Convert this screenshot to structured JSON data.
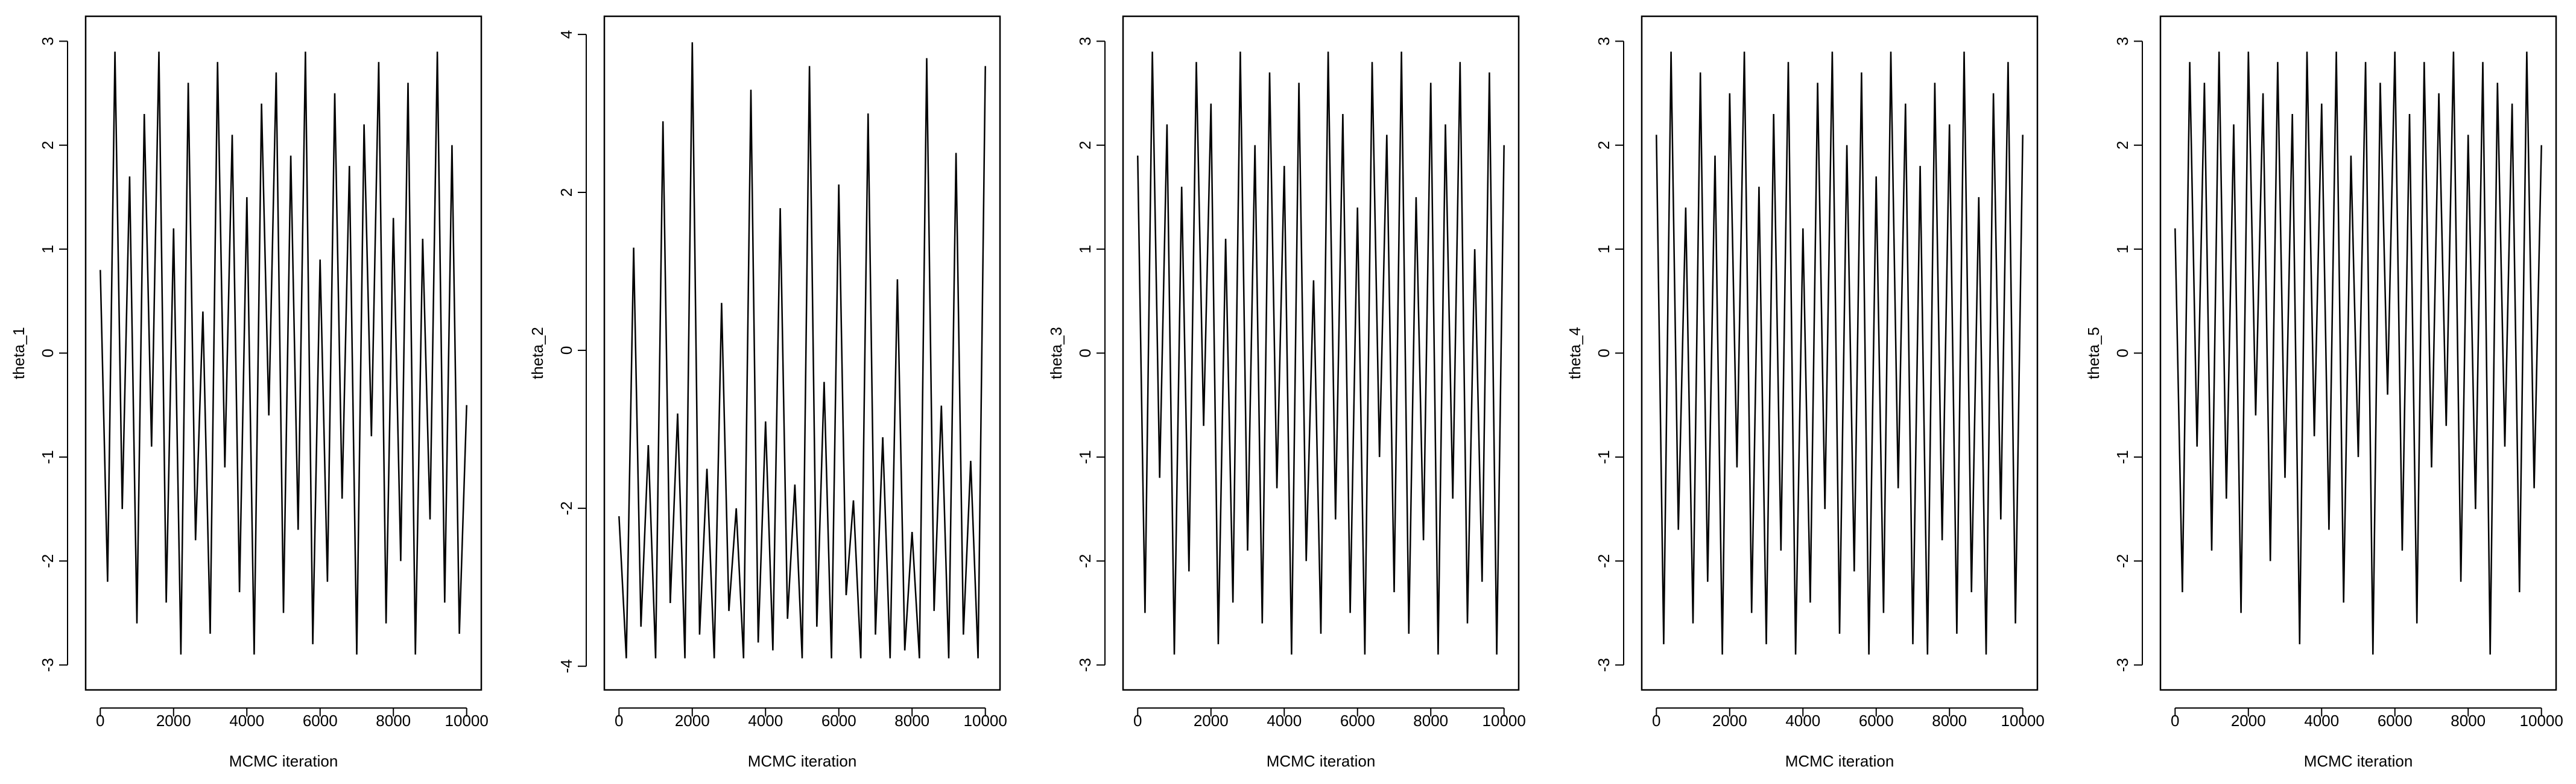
{
  "chart_data": [
    {
      "type": "line",
      "xlabel": "MCMC iteration",
      "ylabel": "theta_1",
      "color": "#000000",
      "x": [
        0,
        200,
        400,
        600,
        800,
        1000,
        1200,
        1400,
        1600,
        1800,
        2000,
        2200,
        2400,
        2600,
        2800,
        3000,
        3200,
        3400,
        3600,
        3800,
        4000,
        4200,
        4400,
        4600,
        4800,
        5000,
        5200,
        5400,
        5600,
        5800,
        6000,
        6200,
        6400,
        6600,
        6800,
        7000,
        7200,
        7400,
        7600,
        7800,
        8000,
        8200,
        8400,
        8600,
        8800,
        9000,
        9200,
        9400,
        9600,
        9800,
        10000
      ],
      "values": [
        0.8,
        -2.2,
        2.9,
        -1.5,
        1.7,
        -2.6,
        2.3,
        -0.9,
        2.9,
        -2.4,
        1.2,
        -2.9,
        2.6,
        -1.8,
        0.4,
        -2.7,
        2.8,
        -1.1,
        2.1,
        -2.3,
        1.5,
        -2.9,
        2.4,
        -0.6,
        2.7,
        -2.5,
        1.9,
        -1.7,
        2.9,
        -2.8,
        0.9,
        -2.2,
        2.5,
        -1.4,
        1.8,
        -2.9,
        2.2,
        -0.8,
        2.8,
        -2.6,
        1.3,
        -2.0,
        2.6,
        -2.9,
        1.1,
        -1.6,
        2.9,
        -2.4,
        2.0,
        -2.7,
        -0.5
      ],
      "xlim": [
        -400,
        10400
      ],
      "xticks": [
        0,
        2000,
        4000,
        6000,
        8000,
        10000
      ],
      "ylim": [
        -3.24,
        3.24
      ],
      "yticks": [
        -3,
        -2,
        -1,
        0,
        1,
        2,
        3
      ]
    },
    {
      "type": "line",
      "xlabel": "MCMC iteration",
      "ylabel": "theta_2",
      "color": "#000000",
      "x": [
        0,
        200,
        400,
        600,
        800,
        1000,
        1200,
        1400,
        1600,
        1800,
        2000,
        2200,
        2400,
        2600,
        2800,
        3000,
        3200,
        3400,
        3600,
        3800,
        4000,
        4200,
        4400,
        4600,
        4800,
        5000,
        5200,
        5400,
        5600,
        5800,
        6000,
        6200,
        6400,
        6600,
        6800,
        7000,
        7200,
        7400,
        7600,
        7800,
        8000,
        8200,
        8400,
        8600,
        8800,
        9000,
        9200,
        9400,
        9600,
        9800,
        10000
      ],
      "values": [
        -2.1,
        -3.9,
        1.3,
        -3.5,
        -1.2,
        -3.9,
        2.9,
        -3.2,
        -0.8,
        -3.9,
        3.9,
        -3.6,
        -1.5,
        -3.9,
        0.6,
        -3.3,
        -2.0,
        -3.9,
        3.3,
        -3.7,
        -0.9,
        -3.8,
        1.8,
        -3.4,
        -1.7,
        -3.9,
        3.6,
        -3.5,
        -0.4,
        -3.9,
        2.1,
        -3.1,
        -1.9,
        -3.9,
        3.0,
        -3.6,
        -1.1,
        -3.9,
        0.9,
        -3.8,
        -2.3,
        -3.9,
        3.7,
        -3.3,
        -0.7,
        -3.9,
        2.5,
        -3.6,
        -1.4,
        -3.9,
        3.6
      ],
      "xlim": [
        -400,
        10400
      ],
      "xticks": [
        0,
        2000,
        4000,
        6000,
        8000,
        10000
      ],
      "ylim": [
        -4.3,
        4.23
      ],
      "yticks": [
        -4,
        -2,
        0,
        2,
        4
      ]
    },
    {
      "type": "line",
      "xlabel": "MCMC iteration",
      "ylabel": "theta_3",
      "color": "#000000",
      "x": [
        0,
        200,
        400,
        600,
        800,
        1000,
        1200,
        1400,
        1600,
        1800,
        2000,
        2200,
        2400,
        2600,
        2800,
        3000,
        3200,
        3400,
        3600,
        3800,
        4000,
        4200,
        4400,
        4600,
        4800,
        5000,
        5200,
        5400,
        5600,
        5800,
        6000,
        6200,
        6400,
        6600,
        6800,
        7000,
        7200,
        7400,
        7600,
        7800,
        8000,
        8200,
        8400,
        8600,
        8800,
        9000,
        9200,
        9400,
        9600,
        9800,
        10000
      ],
      "values": [
        1.9,
        -2.5,
        2.9,
        -1.2,
        2.2,
        -2.9,
        1.6,
        -2.1,
        2.8,
        -0.7,
        2.4,
        -2.8,
        1.1,
        -2.4,
        2.9,
        -1.9,
        2.0,
        -2.6,
        2.7,
        -1.3,
        1.8,
        -2.9,
        2.6,
        -2.0,
        0.7,
        -2.7,
        2.9,
        -1.6,
        2.3,
        -2.5,
        1.4,
        -2.9,
        2.8,
        -1.0,
        2.1,
        -2.3,
        2.9,
        -2.7,
        1.5,
        -1.8,
        2.6,
        -2.9,
        2.2,
        -1.4,
        2.8,
        -2.6,
        1.0,
        -2.2,
        2.7,
        -2.9,
        2.0
      ],
      "xlim": [
        -400,
        10400
      ],
      "xticks": [
        0,
        2000,
        4000,
        6000,
        8000,
        10000
      ],
      "ylim": [
        -3.24,
        3.24
      ],
      "yticks": [
        -3,
        -2,
        -1,
        0,
        1,
        2,
        3
      ]
    },
    {
      "type": "line",
      "xlabel": "MCMC iteration",
      "ylabel": "theta_4",
      "color": "#000000",
      "x": [
        0,
        200,
        400,
        600,
        800,
        1000,
        1200,
        1400,
        1600,
        1800,
        2000,
        2200,
        2400,
        2600,
        2800,
        3000,
        3200,
        3400,
        3600,
        3800,
        4000,
        4200,
        4400,
        4600,
        4800,
        5000,
        5200,
        5400,
        5600,
        5800,
        6000,
        6200,
        6400,
        6600,
        6800,
        7000,
        7200,
        7400,
        7600,
        7800,
        8000,
        8200,
        8400,
        8600,
        8800,
        9000,
        9200,
        9400,
        9600,
        9800,
        10000
      ],
      "values": [
        2.1,
        -2.8,
        2.9,
        -1.7,
        1.4,
        -2.6,
        2.7,
        -2.2,
        1.9,
        -2.9,
        2.5,
        -1.1,
        2.9,
        -2.5,
        1.6,
        -2.8,
        2.3,
        -1.9,
        2.8,
        -2.9,
        1.2,
        -2.4,
        2.6,
        -1.5,
        2.9,
        -2.7,
        2.0,
        -2.1,
        2.7,
        -2.9,
        1.7,
        -2.5,
        2.9,
        -1.3,
        2.4,
        -2.8,
        1.8,
        -2.9,
        2.6,
        -1.8,
        2.2,
        -2.7,
        2.9,
        -2.3,
        1.5,
        -2.9,
        2.5,
        -1.6,
        2.8,
        -2.6,
        2.1
      ],
      "xlim": [
        -400,
        10400
      ],
      "xticks": [
        0,
        2000,
        4000,
        6000,
        8000,
        10000
      ],
      "ylim": [
        -3.24,
        3.24
      ],
      "yticks": [
        -3,
        -2,
        -1,
        0,
        1,
        2,
        3
      ]
    },
    {
      "type": "line",
      "xlabel": "MCMC iteration",
      "ylabel": "theta_5",
      "color": "#000000",
      "x": [
        0,
        200,
        400,
        600,
        800,
        1000,
        1200,
        1400,
        1600,
        1800,
        2000,
        2200,
        2400,
        2600,
        2800,
        3000,
        3200,
        3400,
        3600,
        3800,
        4000,
        4200,
        4400,
        4600,
        4800,
        5000,
        5200,
        5400,
        5600,
        5800,
        6000,
        6200,
        6400,
        6600,
        6800,
        7000,
        7200,
        7400,
        7600,
        7800,
        8000,
        8200,
        8400,
        8600,
        8800,
        9000,
        9200,
        9400,
        9600,
        9800,
        10000
      ],
      "values": [
        1.2,
        -2.3,
        2.8,
        -0.9,
        2.6,
        -1.9,
        2.9,
        -1.4,
        2.2,
        -2.5,
        2.9,
        -0.6,
        2.5,
        -2.0,
        2.8,
        -1.2,
        2.3,
        -2.8,
        2.9,
        -0.8,
        2.4,
        -1.7,
        2.9,
        -2.4,
        1.9,
        -1.0,
        2.8,
        -2.9,
        2.6,
        -0.4,
        2.9,
        -1.9,
        2.3,
        -2.6,
        2.8,
        -1.1,
        2.5,
        -0.7,
        2.9,
        -2.2,
        2.1,
        -1.5,
        2.8,
        -2.9,
        2.6,
        -0.9,
        2.4,
        -2.3,
        2.9,
        -1.3,
        2.0
      ],
      "xlim": [
        -400,
        10400
      ],
      "xticks": [
        0,
        2000,
        4000,
        6000,
        8000,
        10000
      ],
      "ylim": [
        -3.24,
        3.24
      ],
      "yticks": [
        -3,
        -2,
        -1,
        0,
        1,
        2,
        3
      ]
    }
  ]
}
